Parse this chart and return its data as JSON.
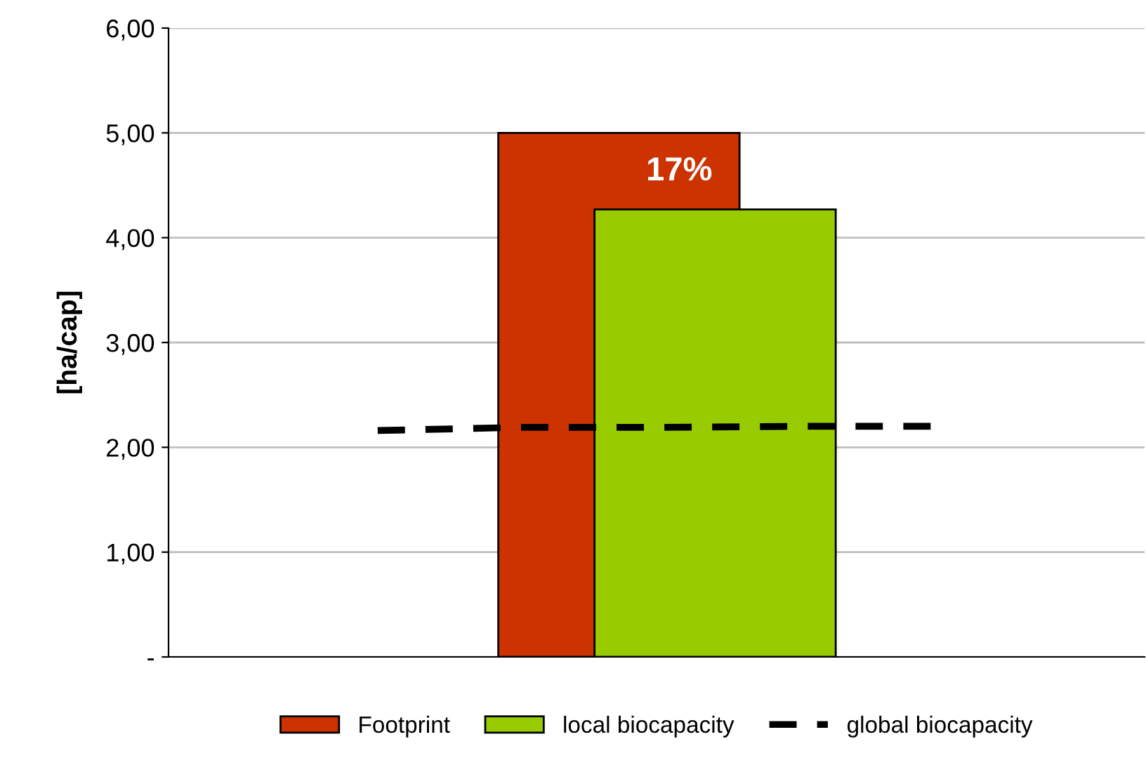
{
  "chart_data": {
    "type": "bar",
    "ylabel": "[ha/cap]",
    "categories": [
      null,
      null,
      null,
      null,
      null,
      null,
      null
    ],
    "series": [
      {
        "name": "Footprint",
        "color": "#cc3300",
        "values": [
          null,
          null,
          null,
          5.0,
          null,
          null,
          null
        ]
      },
      {
        "name": "local biocapacity",
        "color": "#99cc00",
        "values": [
          null,
          null,
          null,
          4.27,
          null,
          null,
          null
        ]
      },
      {
        "name": "global biocapacity",
        "type": "line",
        "color": "#000000",
        "line_style": "dashed",
        "values": [
          null,
          2.16,
          2.19,
          2.19,
          2.2,
          2.2,
          null
        ]
      }
    ],
    "annotations": [
      "17%"
    ],
    "ylim": [
      0,
      6
    ],
    "yticks": [
      {
        "value": 0,
        "label": "-"
      },
      {
        "value": 1,
        "label": "1,00"
      },
      {
        "value": 2,
        "label": "2,00"
      },
      {
        "value": 3,
        "label": "3,00"
      },
      {
        "value": 4,
        "label": "4,00"
      },
      {
        "value": 5,
        "label": "5,00"
      },
      {
        "value": 6,
        "label": "6,00"
      }
    ],
    "grid": "y",
    "legend": "bottom"
  }
}
